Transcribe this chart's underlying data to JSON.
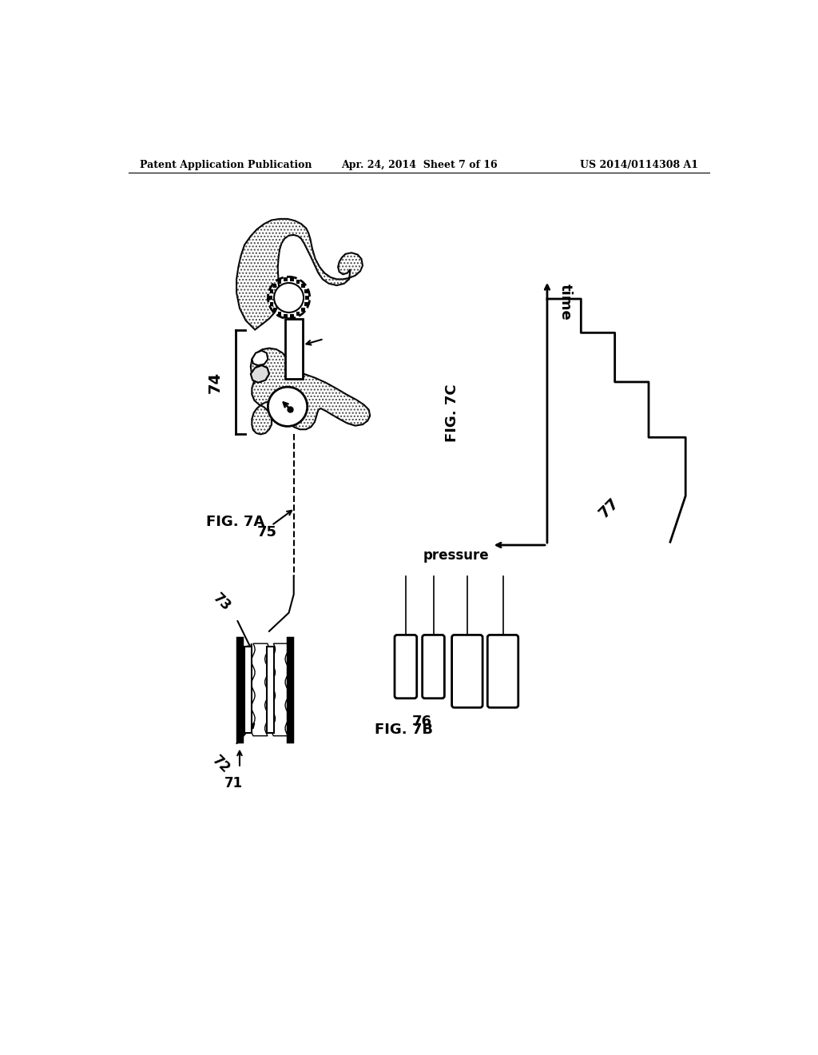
{
  "header_left": "Patent Application Publication",
  "header_mid": "Apr. 24, 2014  Sheet 7 of 16",
  "header_right": "US 2014/0114308 A1",
  "fig7a_label": "FIG. 7A",
  "fig7b_label": "FIG. 7B",
  "fig7c_label": "FIG. 7C",
  "label_74": "74",
  "label_75": "75",
  "label_71": "71",
  "label_72": "72",
  "label_73": "73",
  "label_76": "76",
  "label_77": "77",
  "pressure_label": "pressure",
  "time_label": "time",
  "bg_color": "#ffffff",
  "line_color": "#000000"
}
